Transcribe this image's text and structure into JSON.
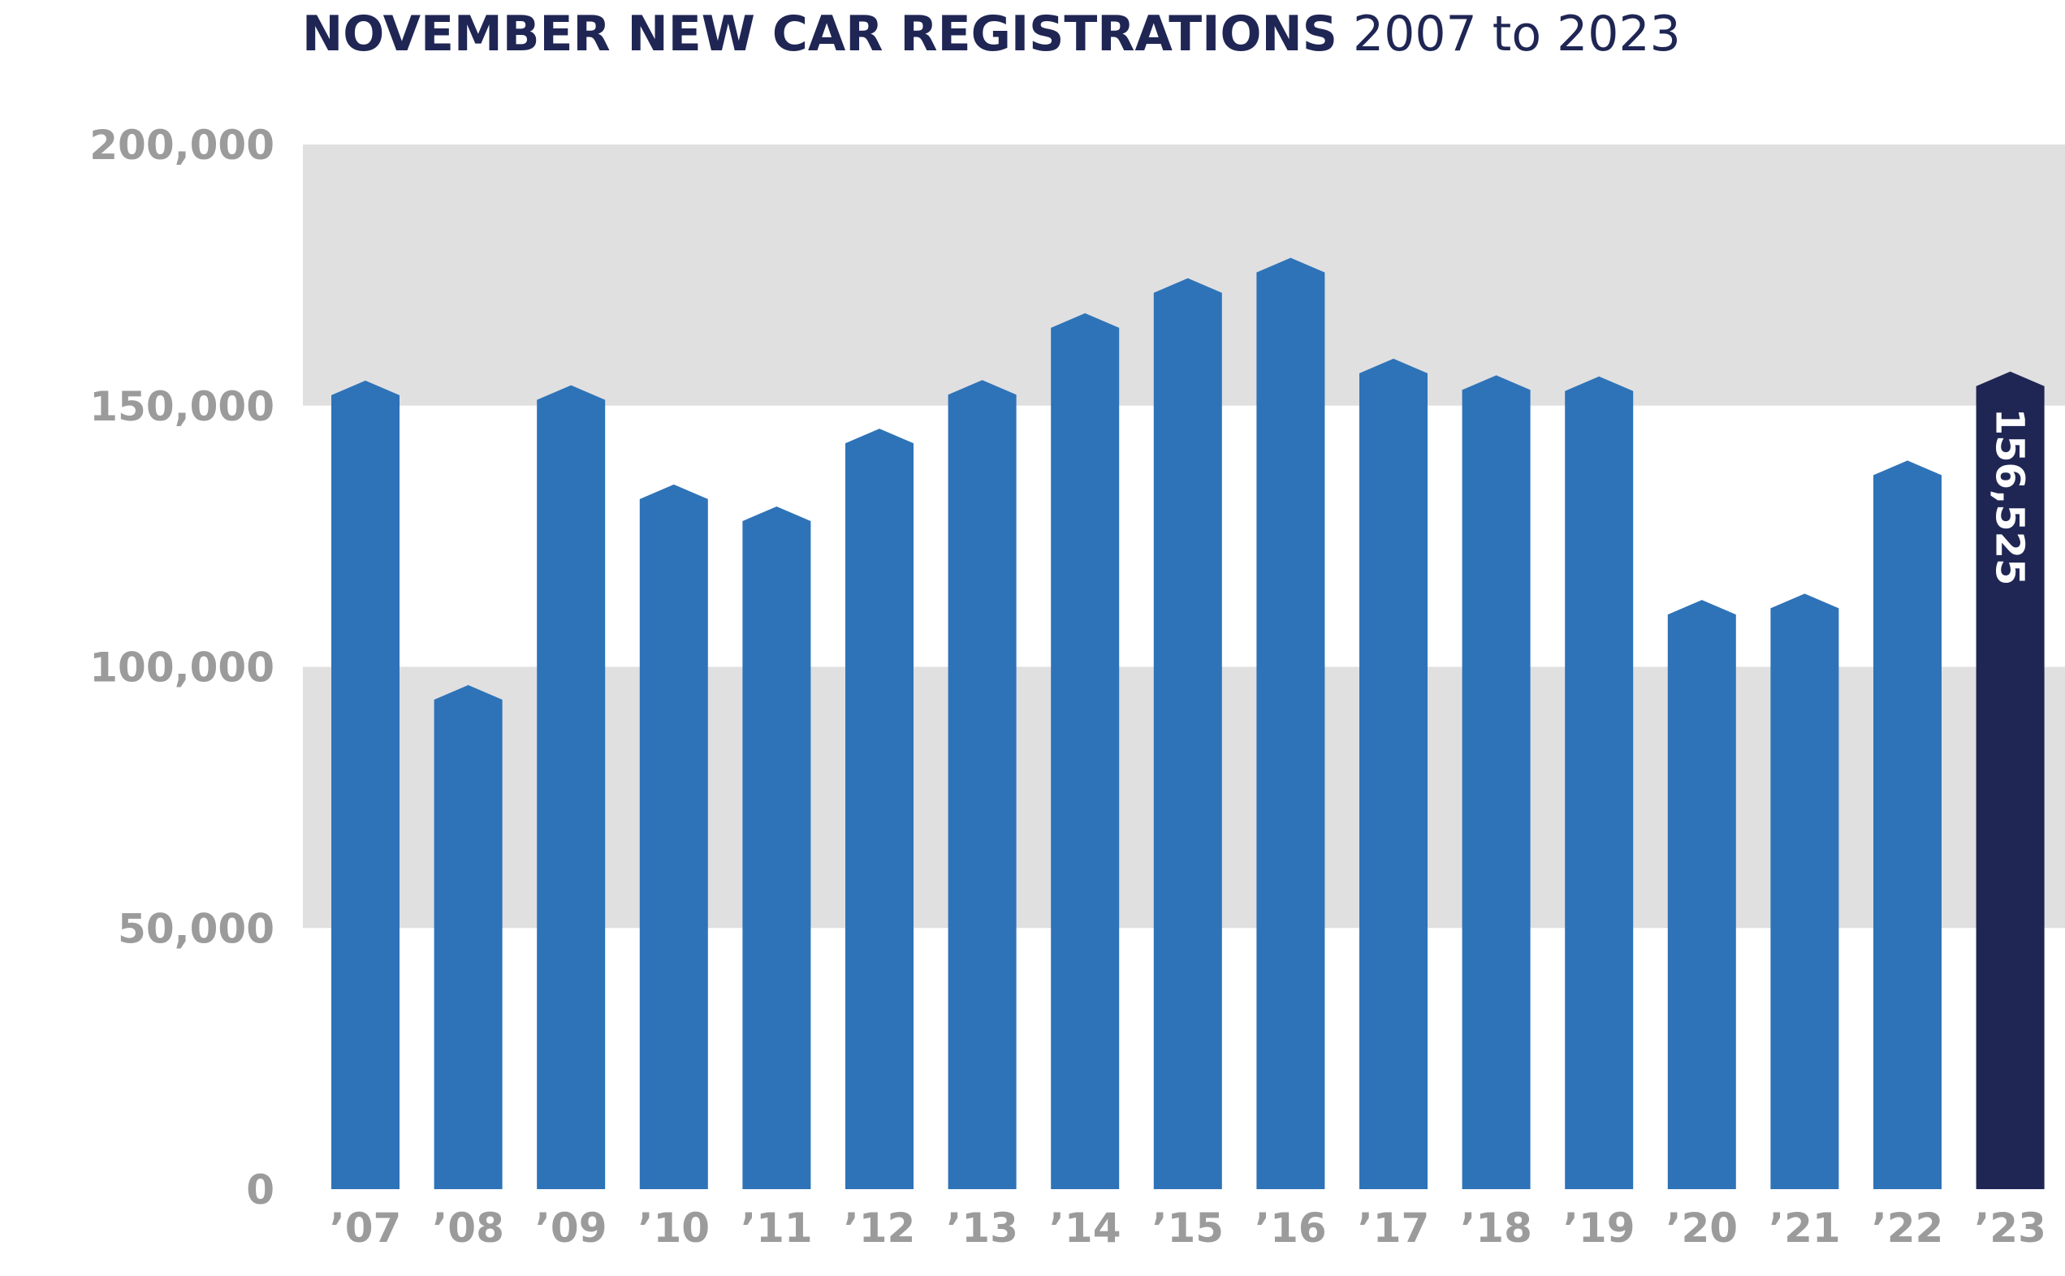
{
  "chart_data": {
    "type": "bar",
    "title": "NOVEMBER NEW CAR REGISTRATIONS",
    "subtitle": "2007 to 2023",
    "categories": [
      "’07",
      "’08",
      "’09",
      "’10",
      "’11",
      "’12",
      "’13",
      "’14",
      "’15",
      "’16",
      "’17",
      "’18",
      "’19",
      "’20",
      "’21",
      "’22",
      "’23"
    ],
    "values": [
      154800,
      96500,
      153900,
      134900,
      130700,
      145600,
      154900,
      167700,
      174400,
      178300,
      159000,
      155800,
      155600,
      112800,
      114000,
      139500,
      156525
    ],
    "ylim": [
      0,
      200000
    ],
    "yticks": [
      0,
      50000,
      100000,
      150000,
      200000
    ],
    "ytick_labels": [
      "0",
      "50,000",
      "100,000",
      "150,000",
      "200,000"
    ],
    "highlight_index": 16,
    "data_labels": [
      {
        "index": 16,
        "text": "156,525"
      }
    ],
    "grid": "alternating bands",
    "colors": {
      "bar": "#2e73b8",
      "highlight": "#1f2654",
      "band": "#e0e0e1",
      "tick": "#9b9b9b",
      "title": "#1f2654"
    }
  }
}
